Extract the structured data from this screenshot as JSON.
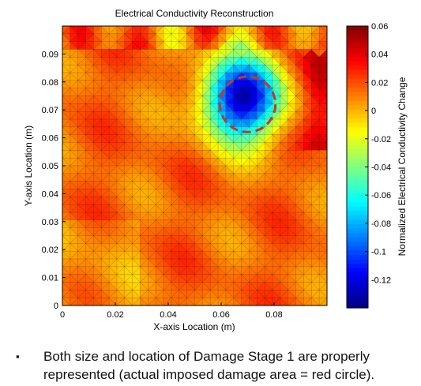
{
  "chart_data": {
    "type": "heatmap",
    "title": "Electrical Conductivity Reconstruction",
    "xlabel": "X-axis Location (m)",
    "ylabel": "Y-axis Location (m)",
    "colorbar_label": "Normalized Electrical Conductivity Change",
    "xlim": [
      0,
      0.1
    ],
    "ylim": [
      0,
      0.1
    ],
    "clim": [
      -0.14,
      0.06
    ],
    "x_ticks": [
      "0",
      "0.02",
      "0.04",
      "0.06",
      "0.08"
    ],
    "y_ticks": [
      "0",
      "0.01",
      "0.02",
      "0.03",
      "0.04",
      "0.05",
      "0.06",
      "0.07",
      "0.08",
      "0.09"
    ],
    "colorbar_ticks": [
      "0.06",
      "0.04",
      "0.02",
      "0",
      "-0.02",
      "-0.04",
      "-0.06",
      "-0.08",
      "-0.1",
      "-0.12"
    ],
    "colormap": "jet",
    "mesh": "triangular",
    "damage_region": {
      "shape": "circle",
      "center": [
        0.07,
        0.072
      ],
      "radius": 0.01,
      "line_color": "#c0392b",
      "line_style": "dashed"
    },
    "conductivity_minimum": {
      "center": [
        0.068,
        0.074
      ],
      "value": -0.14
    }
  },
  "caption": {
    "bullet": "▪",
    "line1": "Both size and location of Damage Stage 1 are properly",
    "line2": "represented (actual imposed damage area = red circle)."
  }
}
